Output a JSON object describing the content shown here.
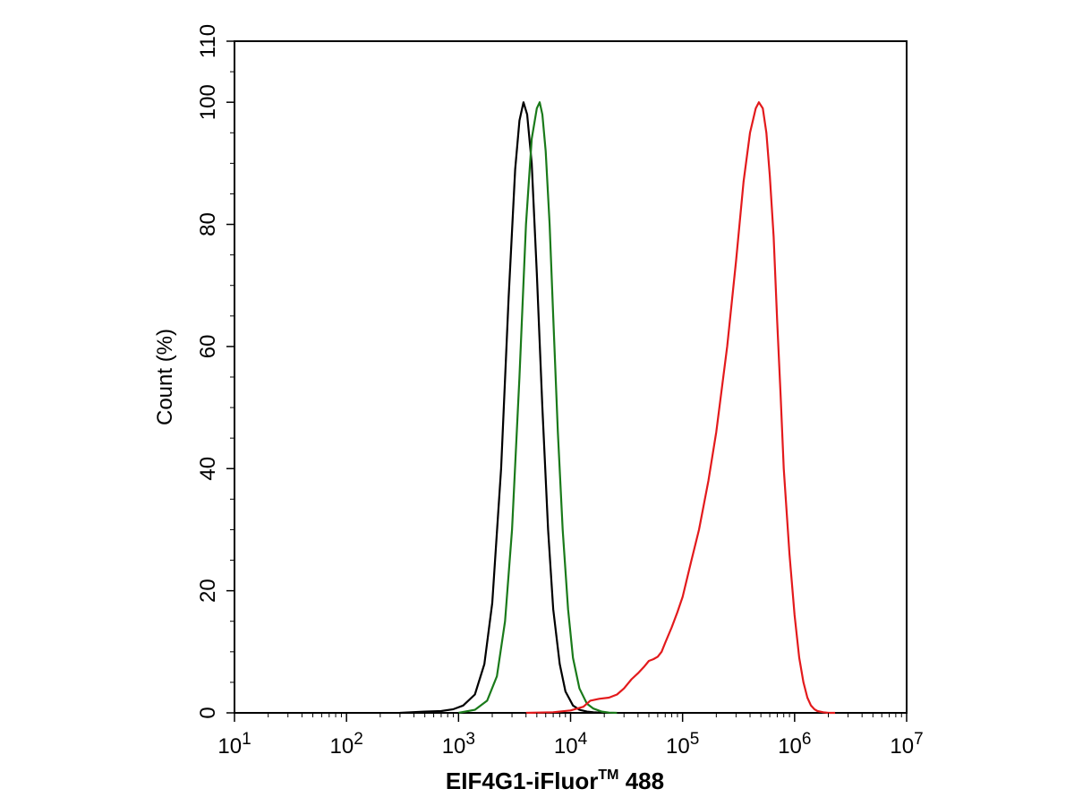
{
  "chart_data": {
    "type": "line",
    "title": "",
    "xlabel": "EIF4G1-iFluor",
    "xlabel_superscript": "TM",
    "xlabel_suffix": " 488",
    "ylabel": "Count  (%)",
    "x_scale": "log",
    "xlim": [
      10,
      10000000
    ],
    "ylim": [
      0,
      110
    ],
    "y_ticks": [
      0,
      20,
      40,
      60,
      80,
      100,
      110
    ],
    "x_ticks": [
      {
        "value": 10,
        "base": "10",
        "exp": "1"
      },
      {
        "value": 100,
        "base": "10",
        "exp": "2"
      },
      {
        "value": 1000,
        "base": "10",
        "exp": "3"
      },
      {
        "value": 10000,
        "base": "10",
        "exp": "4"
      },
      {
        "value": 100000,
        "base": "10",
        "exp": "5"
      },
      {
        "value": 1000000,
        "base": "10",
        "exp": "6"
      },
      {
        "value": 10000000,
        "base": "10",
        "exp": "7"
      }
    ],
    "grid": false,
    "legend": "none",
    "series": [
      {
        "color": "#000000",
        "x": [
          300,
          500,
          700,
          900,
          1100,
          1400,
          1700,
          2000,
          2400,
          2800,
          3200,
          3500,
          3800,
          4100,
          4500,
          5000,
          5600,
          6300,
          7000,
          8000,
          9000,
          10500,
          12000,
          14000,
          16000,
          20000
        ],
        "y": [
          0,
          0.2,
          0.3,
          0.6,
          1.2,
          3,
          8,
          18,
          40,
          68,
          89,
          97,
          100,
          98,
          90,
          72,
          50,
          30,
          17,
          8,
          3.5,
          1.2,
          0.5,
          0.2,
          0.1,
          0
        ]
      },
      {
        "color": "#1a7a1a",
        "x": [
          1000,
          1400,
          1800,
          2200,
          2600,
          3000,
          3500,
          4000,
          4500,
          5000,
          5300,
          5600,
          6000,
          6500,
          7000,
          7700,
          8500,
          9500,
          10500,
          12000,
          14000,
          16000,
          19000,
          22000,
          26000
        ],
        "y": [
          0,
          0.5,
          2,
          6,
          15,
          30,
          55,
          80,
          94,
          99,
          100,
          98,
          92,
          80,
          65,
          46,
          30,
          17,
          9,
          4,
          1.5,
          0.7,
          0.2,
          0.05,
          0
        ]
      },
      {
        "color": "#e31a1c",
        "x": [
          4000,
          7000,
          10000,
          13000,
          15000,
          18000,
          22000,
          26000,
          30000,
          35000,
          40000,
          45000,
          50000,
          55000,
          60000,
          65000,
          70000,
          80000,
          90000,
          100000,
          120000,
          140000,
          170000,
          200000,
          250000,
          300000,
          350000,
          400000,
          450000,
          480000,
          520000,
          560000,
          600000,
          650000,
          700000,
          750000,
          800000,
          900000,
          1000000,
          1100000,
          1200000,
          1300000,
          1400000,
          1500000,
          1600000,
          1800000,
          2000000,
          2300000
        ],
        "y": [
          0,
          0.1,
          0.4,
          1,
          2,
          2.3,
          2.5,
          3,
          4,
          5.5,
          6.5,
          7.5,
          8.5,
          8.8,
          9.2,
          10,
          11.5,
          14,
          16.5,
          19,
          25,
          30,
          38,
          46,
          60,
          74,
          87,
          95,
          99,
          100,
          99,
          95,
          88,
          78,
          64,
          52,
          40,
          26,
          16,
          9,
          5,
          2.5,
          1.2,
          0.6,
          0.3,
          0.1,
          0,
          0
        ]
      }
    ]
  }
}
